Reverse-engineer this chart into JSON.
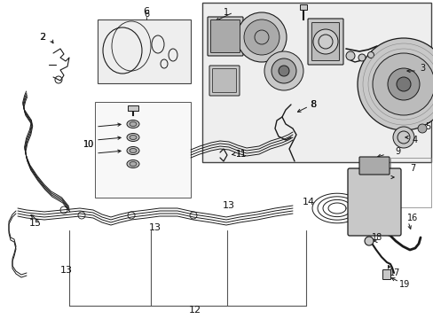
{
  "bg_color": "#ffffff",
  "lc": "#1a1a1a",
  "gray_fill": "#e8e8e8",
  "mid_gray": "#c8c8c8",
  "dark_gray": "#888888",
  "inset_fill": "#eeeeee",
  "fig_width": 4.89,
  "fig_height": 3.6,
  "dpi": 100
}
